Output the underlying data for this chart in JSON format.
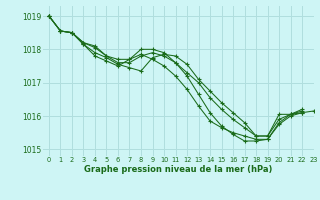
{
  "background_color": "#cef5f5",
  "grid_color": "#b0dede",
  "line_color": "#1a6b1a",
  "xlim": [
    -0.5,
    23
  ],
  "ylim": [
    1014.8,
    1019.3
  ],
  "yticks": [
    1015,
    1016,
    1017,
    1018,
    1019
  ],
  "xticks": [
    0,
    1,
    2,
    3,
    4,
    5,
    6,
    7,
    8,
    9,
    10,
    11,
    12,
    13,
    14,
    15,
    16,
    17,
    18,
    19,
    20,
    21,
    22,
    23
  ],
  "xlabel": "Graphe pression niveau de la mer (hPa)",
  "series": [
    [
      1019.0,
      1018.55,
      1018.5,
      1018.15,
      1017.9,
      1017.75,
      1017.55,
      1017.45,
      1017.35,
      1017.75,
      1017.85,
      1017.8,
      1017.55,
      1017.1,
      1016.75,
      1016.4,
      1016.1,
      1015.8,
      1015.4,
      1015.4,
      1016.05,
      1016.05,
      1016.2,
      null
    ],
    [
      1019.0,
      1018.55,
      1018.5,
      1018.15,
      1017.8,
      1017.65,
      1017.5,
      1017.7,
      1017.85,
      1017.7,
      1017.5,
      1017.2,
      1016.8,
      1016.3,
      1015.85,
      1015.65,
      1015.5,
      1015.4,
      1015.3,
      1015.3,
      1015.8,
      1016.05,
      1016.1,
      null
    ],
    [
      1019.0,
      1018.55,
      1018.5,
      1018.2,
      1018.05,
      1017.8,
      1017.6,
      1017.6,
      1017.8,
      1017.9,
      1017.8,
      1017.6,
      1017.3,
      1017.0,
      1016.55,
      1016.2,
      1015.9,
      1015.65,
      1015.4,
      1015.4,
      1015.9,
      1016.05,
      1016.15,
      null
    ],
    [
      1019.0,
      1018.55,
      1018.5,
      1018.2,
      1018.1,
      1017.8,
      1017.7,
      1017.7,
      1018.0,
      1018.0,
      1017.9,
      1017.6,
      1017.2,
      1016.65,
      1016.1,
      1015.7,
      1015.45,
      1015.25,
      1015.25,
      1015.3,
      1015.75,
      1016.0,
      1016.1,
      1016.15
    ]
  ]
}
